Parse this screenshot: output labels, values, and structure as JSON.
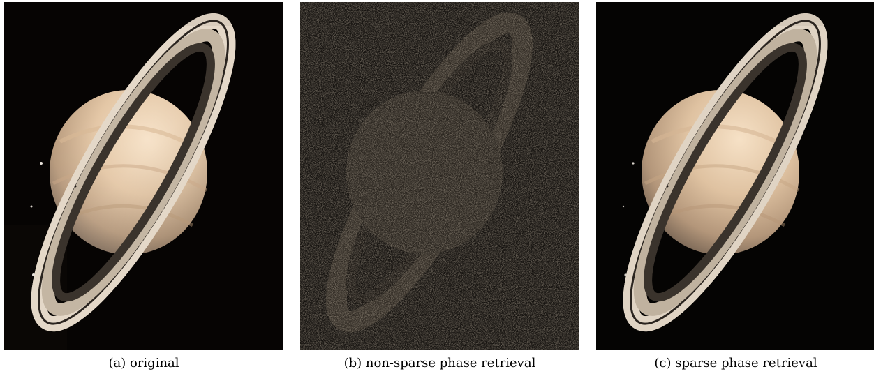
{
  "figure": {
    "panels": [
      {
        "caption": "(a) original"
      },
      {
        "caption": "(b) non-sparse phase retrieval"
      },
      {
        "caption": "(c) sparse phase retrieval"
      }
    ]
  },
  "colors": {
    "space": "#060403",
    "planet_light": "#f1dcc1",
    "planet_mid": "#c8a786",
    "ring_light": "#e9ddcc",
    "ring_dark": "#1a1714",
    "noise_panel_bg": "#171411"
  }
}
